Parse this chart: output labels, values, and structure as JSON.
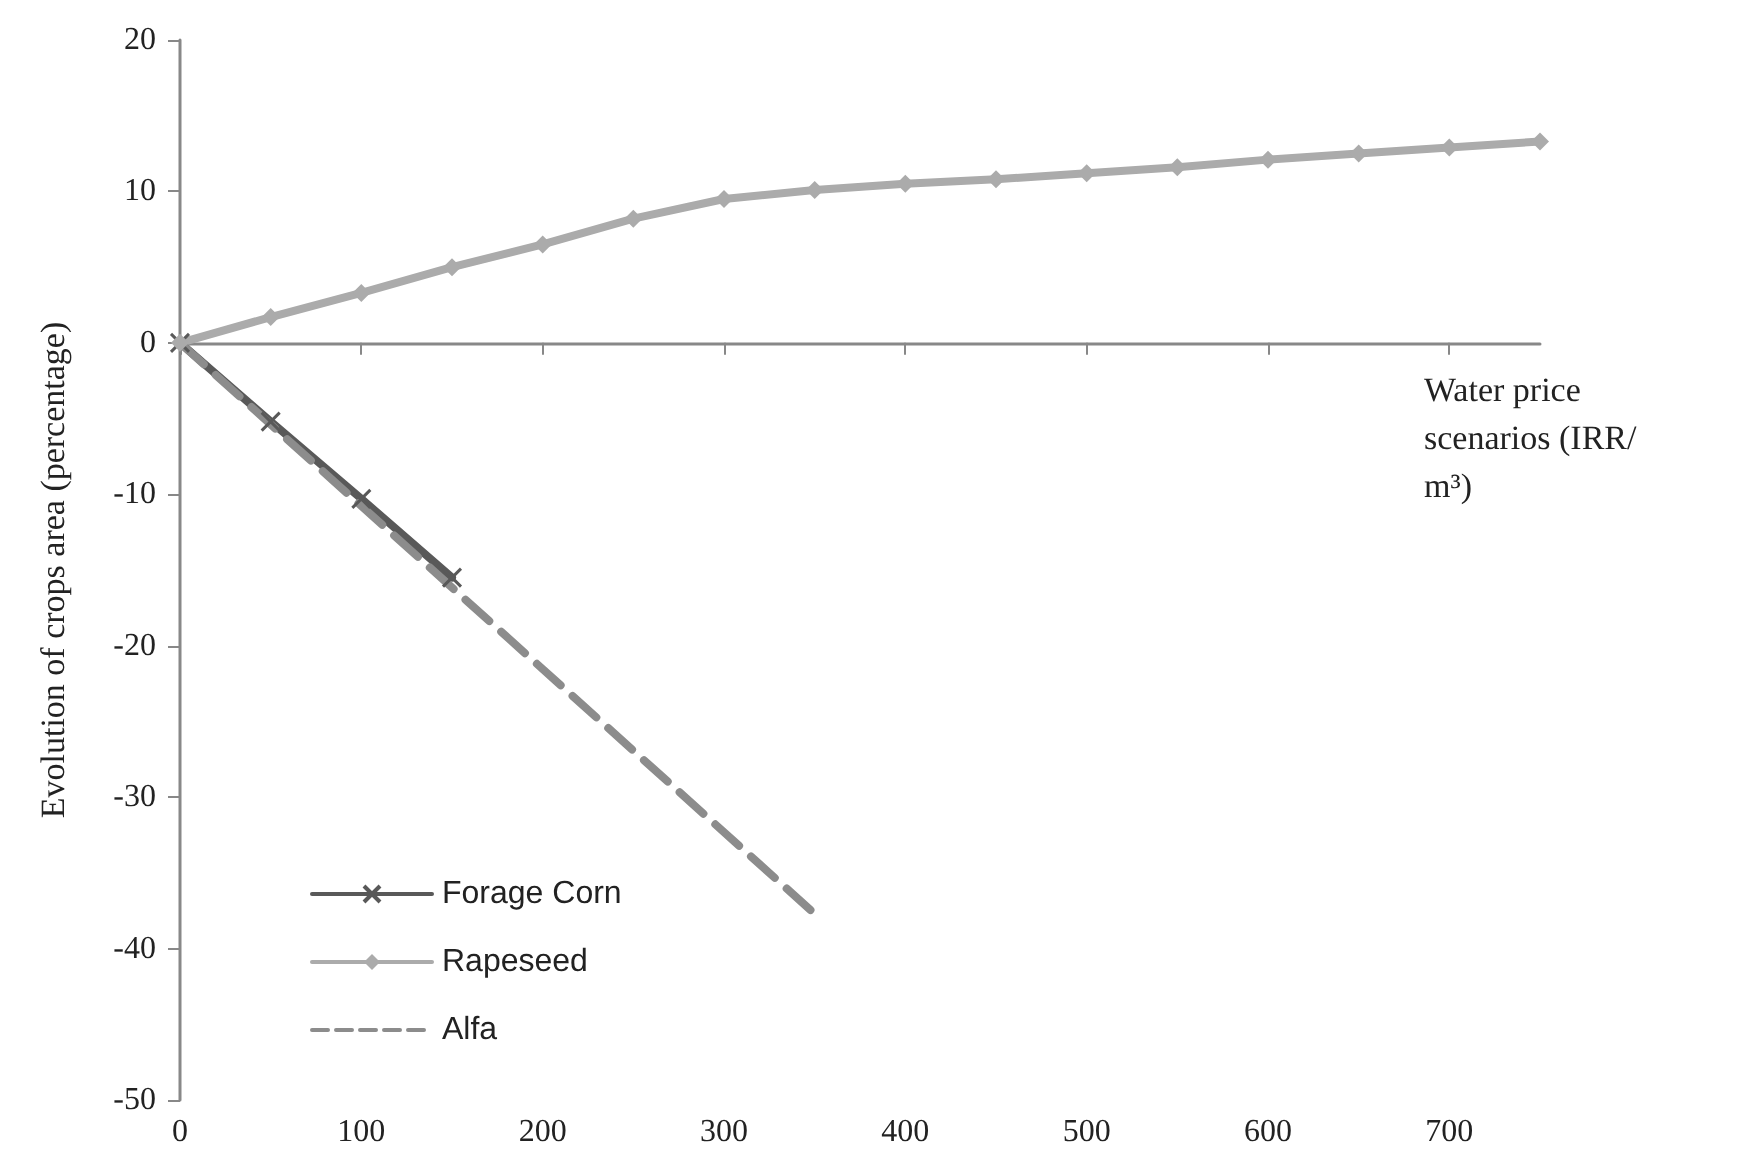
{
  "chart_data": {
    "type": "line",
    "xlabel": "Water price scenarios (IRR/m³)",
    "ylabel": "Evolution of crops area (percentage)",
    "x": [
      0,
      50,
      100,
      150,
      200,
      250,
      300,
      350,
      400,
      450,
      500,
      550,
      600,
      650,
      700,
      750
    ],
    "series": [
      {
        "name": "Forage Corn",
        "color": "#595959",
        "marker": "cross",
        "x": [
          0,
          50,
          100,
          150
        ],
        "values": [
          0,
          -5.2,
          -10.3,
          -15.5
        ]
      },
      {
        "name": "Rapeseed",
        "color": "#ababab",
        "marker": "diamond",
        "values": [
          0,
          1.7,
          3.3,
          5.0,
          6.5,
          8.2,
          9.5,
          10.1,
          10.5,
          10.8,
          11.2,
          11.6,
          12.1,
          12.5,
          12.9,
          13.3
        ]
      },
      {
        "name": "Alfa",
        "color": "#8c8c8c",
        "marker": "none",
        "line_style": "dashed",
        "x": [
          0,
          350
        ],
        "values": [
          0,
          -37.7
        ]
      }
    ],
    "xlim": [
      0,
      750
    ],
    "xticks": [
      0,
      100,
      200,
      300,
      400,
      500,
      600,
      700
    ],
    "ylim": [
      -50,
      20
    ],
    "yticks": [
      -50,
      -40,
      -30,
      -20,
      -10,
      0,
      10,
      20
    ],
    "legend": "bottom left"
  }
}
